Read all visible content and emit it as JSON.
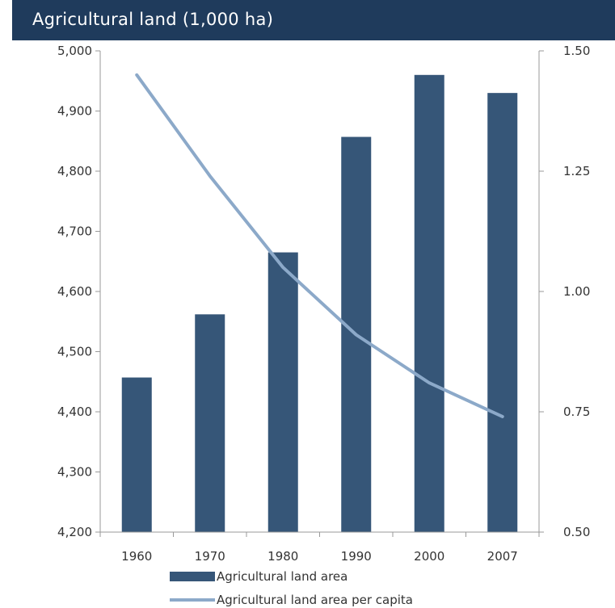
{
  "chart_data": {
    "type": "bar",
    "title": "Agricultural land (1,000 ha)",
    "categories": [
      "1960",
      "1970",
      "1980",
      "1990",
      "2000",
      "2007"
    ],
    "series": [
      {
        "name": "Agricultural land area",
        "type": "bar",
        "axis": "left",
        "values": [
          4457,
          4562,
          4665,
          4857,
          4960,
          4930
        ],
        "color": "#365678"
      },
      {
        "name": "Agricultural land area per capita",
        "type": "line",
        "axis": "right",
        "values": [
          1.45,
          1.24,
          1.05,
          0.91,
          0.81,
          0.74
        ],
        "color": "#8ca9c9"
      }
    ],
    "ylim": [
      4200,
      5000
    ],
    "y2lim": [
      0.5,
      1.5
    ],
    "yticks": [
      "4,200",
      "4,300",
      "4,400",
      "4,500",
      "4,600",
      "4,700",
      "4,800",
      "4,900",
      "5,000"
    ],
    "y2ticks": [
      "0.50",
      "0.75",
      "1.00",
      "1.25",
      "1.50"
    ],
    "grid": false,
    "legend": "bottom"
  }
}
